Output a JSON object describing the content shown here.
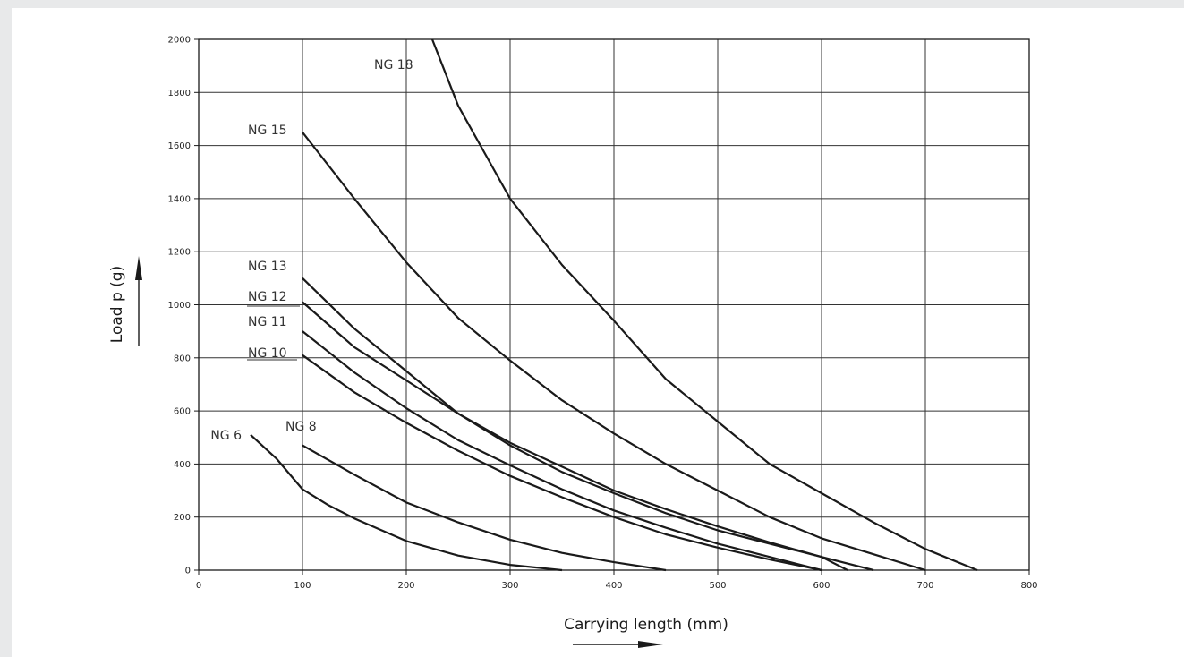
{
  "chart_data": {
    "type": "line",
    "title": "",
    "xlabel": "Carrying length (mm)",
    "ylabel": "Load p (g)",
    "xlim": [
      0,
      800
    ],
    "ylim": [
      0,
      2000
    ],
    "x_ticks": [
      0,
      100,
      200,
      300,
      400,
      500,
      600,
      700,
      800
    ],
    "y_ticks": [
      0,
      200,
      400,
      600,
      800,
      1000,
      1200,
      1400,
      1600,
      1800,
      2000
    ],
    "grid": true,
    "legend": "none",
    "series": [
      {
        "name": "NG 6",
        "points": [
          [
            50,
            510
          ],
          [
            75,
            420
          ],
          [
            100,
            305
          ],
          [
            125,
            245
          ],
          [
            150,
            195
          ],
          [
            200,
            110
          ],
          [
            250,
            55
          ],
          [
            300,
            20
          ],
          [
            350,
            0
          ]
        ]
      },
      {
        "name": "NG 8",
        "points": [
          [
            100,
            470
          ],
          [
            150,
            360
          ],
          [
            200,
            255
          ],
          [
            250,
            180
          ],
          [
            300,
            115
          ],
          [
            350,
            65
          ],
          [
            400,
            30
          ],
          [
            450,
            0
          ]
        ]
      },
      {
        "name": "NG 10",
        "points": [
          [
            100,
            810
          ],
          [
            150,
            670
          ],
          [
            200,
            555
          ],
          [
            250,
            450
          ],
          [
            300,
            355
          ],
          [
            350,
            275
          ],
          [
            400,
            200
          ],
          [
            450,
            135
          ],
          [
            500,
            85
          ],
          [
            550,
            40
          ],
          [
            600,
            0
          ]
        ]
      },
      {
        "name": "NG 11",
        "points": [
          [
            100,
            900
          ],
          [
            150,
            745
          ],
          [
            200,
            610
          ],
          [
            250,
            490
          ],
          [
            300,
            395
          ],
          [
            350,
            305
          ],
          [
            400,
            225
          ],
          [
            450,
            160
          ],
          [
            500,
            100
          ],
          [
            550,
            50
          ],
          [
            600,
            0
          ]
        ]
      },
      {
        "name": "NG 12",
        "points": [
          [
            100,
            1010
          ],
          [
            150,
            840
          ],
          [
            200,
            715
          ],
          [
            250,
            590
          ],
          [
            300,
            480
          ],
          [
            350,
            390
          ],
          [
            400,
            300
          ],
          [
            450,
            230
          ],
          [
            500,
            165
          ],
          [
            550,
            105
          ],
          [
            600,
            50
          ],
          [
            625,
            0
          ]
        ]
      },
      {
        "name": "NG 13",
        "points": [
          [
            100,
            1100
          ],
          [
            150,
            910
          ],
          [
            200,
            750
          ],
          [
            250,
            590
          ],
          [
            300,
            470
          ],
          [
            350,
            370
          ],
          [
            400,
            290
          ],
          [
            450,
            215
          ],
          [
            500,
            150
          ],
          [
            550,
            100
          ],
          [
            600,
            50
          ],
          [
            650,
            0
          ]
        ]
      },
      {
        "name": "NG 15",
        "points": [
          [
            100,
            1650
          ],
          [
            150,
            1400
          ],
          [
            200,
            1160
          ],
          [
            250,
            950
          ],
          [
            300,
            790
          ],
          [
            350,
            640
          ],
          [
            400,
            515
          ],
          [
            450,
            400
          ],
          [
            500,
            300
          ],
          [
            550,
            200
          ],
          [
            600,
            120
          ],
          [
            650,
            60
          ],
          [
            700,
            0
          ]
        ]
      },
      {
        "name": "NG 18",
        "points": [
          [
            225,
            2000
          ],
          [
            250,
            1750
          ],
          [
            300,
            1400
          ],
          [
            350,
            1150
          ],
          [
            400,
            940
          ],
          [
            450,
            720
          ],
          [
            500,
            560
          ],
          [
            550,
            400
          ],
          [
            600,
            290
          ],
          [
            650,
            180
          ],
          [
            700,
            80
          ],
          [
            750,
            0
          ]
        ]
      }
    ]
  }
}
